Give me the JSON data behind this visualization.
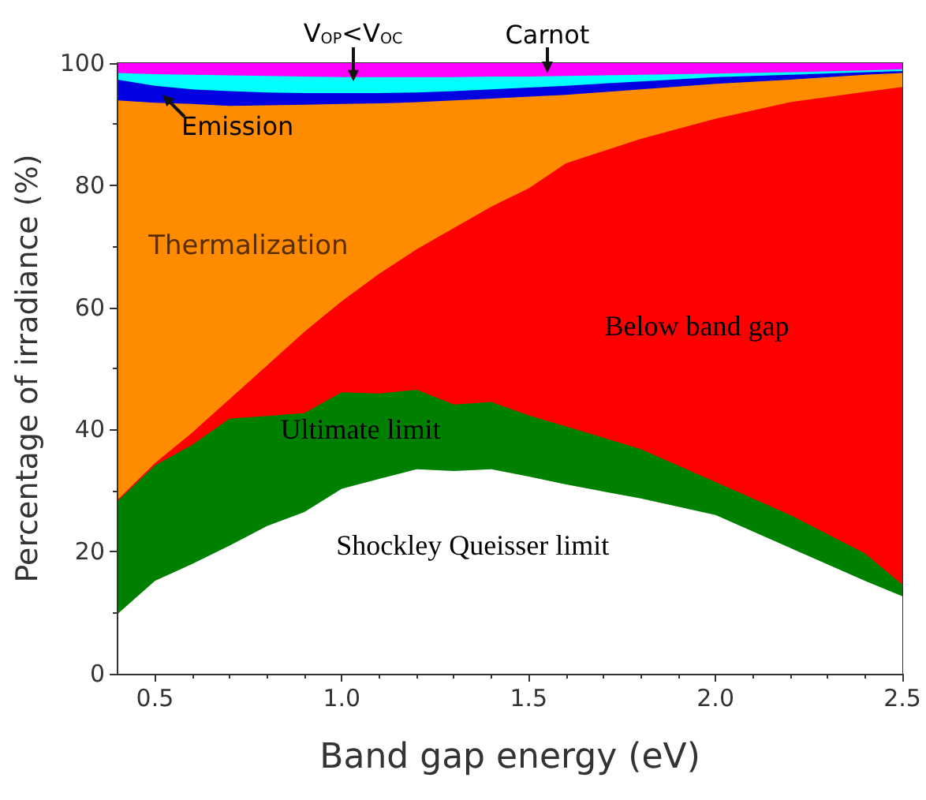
{
  "chart_data": {
    "type": "area",
    "stacked": true,
    "xlabel": "Band gap energy (eV)",
    "ylabel": "Percentage of irradiance (%)",
    "x": [
      0.4,
      0.5,
      0.6,
      0.7,
      0.8,
      0.9,
      1.0,
      1.1,
      1.2,
      1.3,
      1.4,
      1.5,
      1.6,
      1.8,
      2.0,
      2.2,
      2.4,
      2.5
    ],
    "series": [
      {
        "name": "Shockley Queisser limit",
        "color": "#ffffff",
        "values": [
          9.8,
          15.2,
          18,
          21,
          24.2,
          26.5,
          30.3,
          31.9,
          33.5,
          33.2,
          33.5,
          32.3,
          31,
          28.7,
          26,
          20.6,
          15.2,
          12.7
        ]
      },
      {
        "name": "Ultimate limit",
        "color": "#008000",
        "values": [
          18.5,
          18.9,
          19.5,
          20.8,
          18,
          16.2,
          15.8,
          14,
          13,
          10.9,
          11,
          10,
          9.5,
          8.1,
          5.4,
          5.4,
          4.5,
          1.9
        ]
      },
      {
        "name": "Below band gap",
        "color": "#ff0000",
        "values": [
          0.2,
          0.4,
          2,
          3.2,
          8.3,
          13.3,
          14.9,
          19.6,
          23,
          28.9,
          32,
          37.2,
          43.1,
          50.8,
          59.5,
          67.6,
          75.6,
          81.5
        ]
      },
      {
        "name": "Thermalization",
        "color": "#ff8c00",
        "values": [
          65.4,
          59,
          53.8,
          48,
          42.6,
          37.2,
          32.3,
          27.9,
          24.1,
          20.9,
          17.7,
          15,
          11.2,
          8.1,
          5.7,
          3.7,
          2.8,
          2.3
        ]
      },
      {
        "name": "Emission",
        "color": "#0000e0",
        "values": [
          3.4,
          2.8,
          2.4,
          2.4,
          2.1,
          1.9,
          1.8,
          1.7,
          1.6,
          1.5,
          1.5,
          1.5,
          1.5,
          1.3,
          1.1,
          0.8,
          0.4,
          0.3
        ]
      },
      {
        "name": "V$_{OP}$<V$_{OC}$",
        "color": "#00ffff",
        "values": [
          1.1,
          1.9,
          2.4,
          2.6,
          2.7,
          2.7,
          2.6,
          2.6,
          2.5,
          2.3,
          2.1,
          1.8,
          1.6,
          1.1,
          0.6,
          0.4,
          0.3,
          0.3
        ]
      },
      {
        "name": "Carnot",
        "color": "#ff00ff",
        "values": [
          1.6,
          1.8,
          1.9,
          2,
          2.1,
          2.2,
          2.3,
          2.3,
          2.3,
          2.3,
          2.2,
          2.2,
          2.1,
          1.9,
          1.7,
          1.5,
          1.2,
          1.0
        ]
      }
    ],
    "xlim": [
      0.4,
      2.5
    ],
    "xticks": [
      0.5,
      {
        "value": 1,
        "label": "1.0"
      },
      1.5,
      {
        "value": 2,
        "label": "2.0"
      },
      2.5
    ],
    "ylim": [
      0,
      100
    ],
    "yticks": [
      0,
      20,
      40,
      60,
      80,
      100
    ],
    "grid": false,
    "legend": false
  }
}
